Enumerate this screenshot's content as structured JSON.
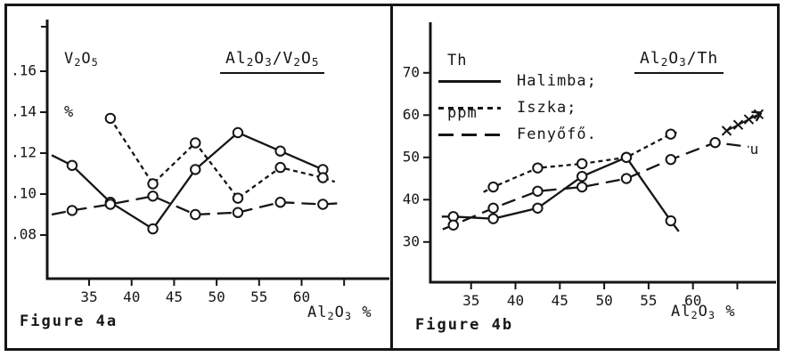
{
  "figure": {
    "caption_a": "Figure 4a",
    "caption_b": "Figure 4b"
  },
  "legend": {
    "entries": [
      {
        "label": "Halimba;",
        "style": "solid"
      },
      {
        "label": "Iszka;",
        "style": "dashed"
      },
      {
        "label": "Fenyőfő.",
        "style": "longdash"
      }
    ]
  },
  "chart_data": [
    {
      "type": "line",
      "panel": "a",
      "title": "Al2O3/V2O5",
      "ylabel": "V2O5",
      "ylabel_unit": "%",
      "xlabel": "Al2O3 %",
      "xlim": [
        30,
        70.3
      ],
      "ylim": [
        0.059,
        0.185
      ],
      "grid": false,
      "legend_position": "none",
      "xticks": [
        35,
        40,
        45,
        50,
        55,
        60,
        65
      ],
      "xtick_labels": [
        "35",
        "40",
        "45",
        "50",
        "55",
        "60",
        ""
      ],
      "yticks": [
        0.08,
        0.1,
        0.12,
        0.14,
        0.16
      ],
      "ytick_labels": [
        ".08",
        ".10",
        ".12",
        ".14",
        ".16"
      ],
      "series": [
        {
          "name": "Halimba",
          "style": "solid",
          "marker": "circle",
          "x": [
            33,
            37.5,
            42.5,
            47.5,
            52.5,
            57.5,
            62.5
          ],
          "y": [
            0.114,
            0.096,
            0.083,
            0.112,
            0.13,
            0.121,
            0.112
          ],
          "head": {
            "x": 30.6,
            "y": 0.119
          }
        },
        {
          "name": "Iszka",
          "style": "dashed",
          "marker": "circle",
          "x": [
            37.5,
            42.5,
            47.5,
            52.5,
            57.5,
            62.5
          ],
          "y": [
            0.137,
            0.105,
            0.125,
            0.098,
            0.113,
            0.108
          ],
          "tail": {
            "x": 63.9,
            "y": 0.106
          }
        },
        {
          "name": "Fenyőfő",
          "style": "longdash",
          "marker": "circle",
          "x": [
            33,
            37.5,
            42.5,
            47.5,
            52.5,
            57.5,
            62.5
          ],
          "y": [
            0.092,
            0.095,
            0.099,
            0.09,
            0.091,
            0.096,
            0.095
          ],
          "head": {
            "x": 30.6,
            "y": 0.09
          },
          "tail": {
            "x": 64.3,
            "y": 0.0955
          }
        }
      ]
    },
    {
      "type": "line",
      "panel": "b",
      "title": "Al2O3/Th",
      "ylabel": "Th",
      "ylabel_unit": "ppm",
      "xlabel": "Al2O3 %",
      "xlim": [
        30.4,
        69.4
      ],
      "ylim": [
        20.5,
        82
      ],
      "grid": false,
      "legend_position": "upper-left",
      "xticks": [
        35,
        40,
        45,
        50,
        55,
        60,
        65
      ],
      "xtick_labels": [
        "35",
        "40",
        "45",
        "50",
        "55",
        "60",
        ""
      ],
      "yticks": [
        30,
        40,
        50,
        60,
        70
      ],
      "ytick_labels": [
        "30",
        "40",
        "50",
        "60",
        "70"
      ],
      "series": [
        {
          "name": "Halimba",
          "style": "solid",
          "marker": "circle",
          "x": [
            33,
            37.5,
            42.5,
            47.5,
            52.5,
            57.5
          ],
          "y": [
            36,
            35.5,
            38,
            45.5,
            50,
            35
          ],
          "head": {
            "x": 31.7,
            "y": 36
          },
          "tail": {
            "x": 58.4,
            "y": 32.5
          }
        },
        {
          "name": "Iszka",
          "style": "dashed",
          "marker": "circle",
          "x": [
            37.5,
            42.5,
            47.5,
            52.5,
            57.5
          ],
          "y": [
            43,
            47.5,
            48.5,
            50,
            55.5
          ],
          "head": {
            "x": 36.4,
            "y": 41.8
          },
          "tail": {
            "x": 58.4,
            "y": 56
          }
        },
        {
          "name": "Fenyőfő",
          "style": "longdash",
          "marker": "circle",
          "x": [
            33,
            37.5,
            42.5,
            47.5,
            52.5,
            57.5,
            62.5
          ],
          "y": [
            34,
            38,
            42,
            43,
            45,
            49.5,
            53.5
          ],
          "head": {
            "x": 31.8,
            "y": 33
          },
          "tail": {
            "x": 66.3,
            "y": 52.5
          }
        }
      ],
      "annotations": {
        "trend_markers": {
          "marker": "x",
          "x": [
            63.8,
            65.1,
            66.3,
            67.4
          ],
          "y": [
            56.3,
            57.7,
            59.0,
            60.2
          ]
        },
        "arrow_tip": {
          "x": 67.7,
          "y": 60.6
        },
        "stray_glyph": {
          "x": 66.9,
          "y": 51.7,
          "text": "u"
        }
      }
    }
  ]
}
